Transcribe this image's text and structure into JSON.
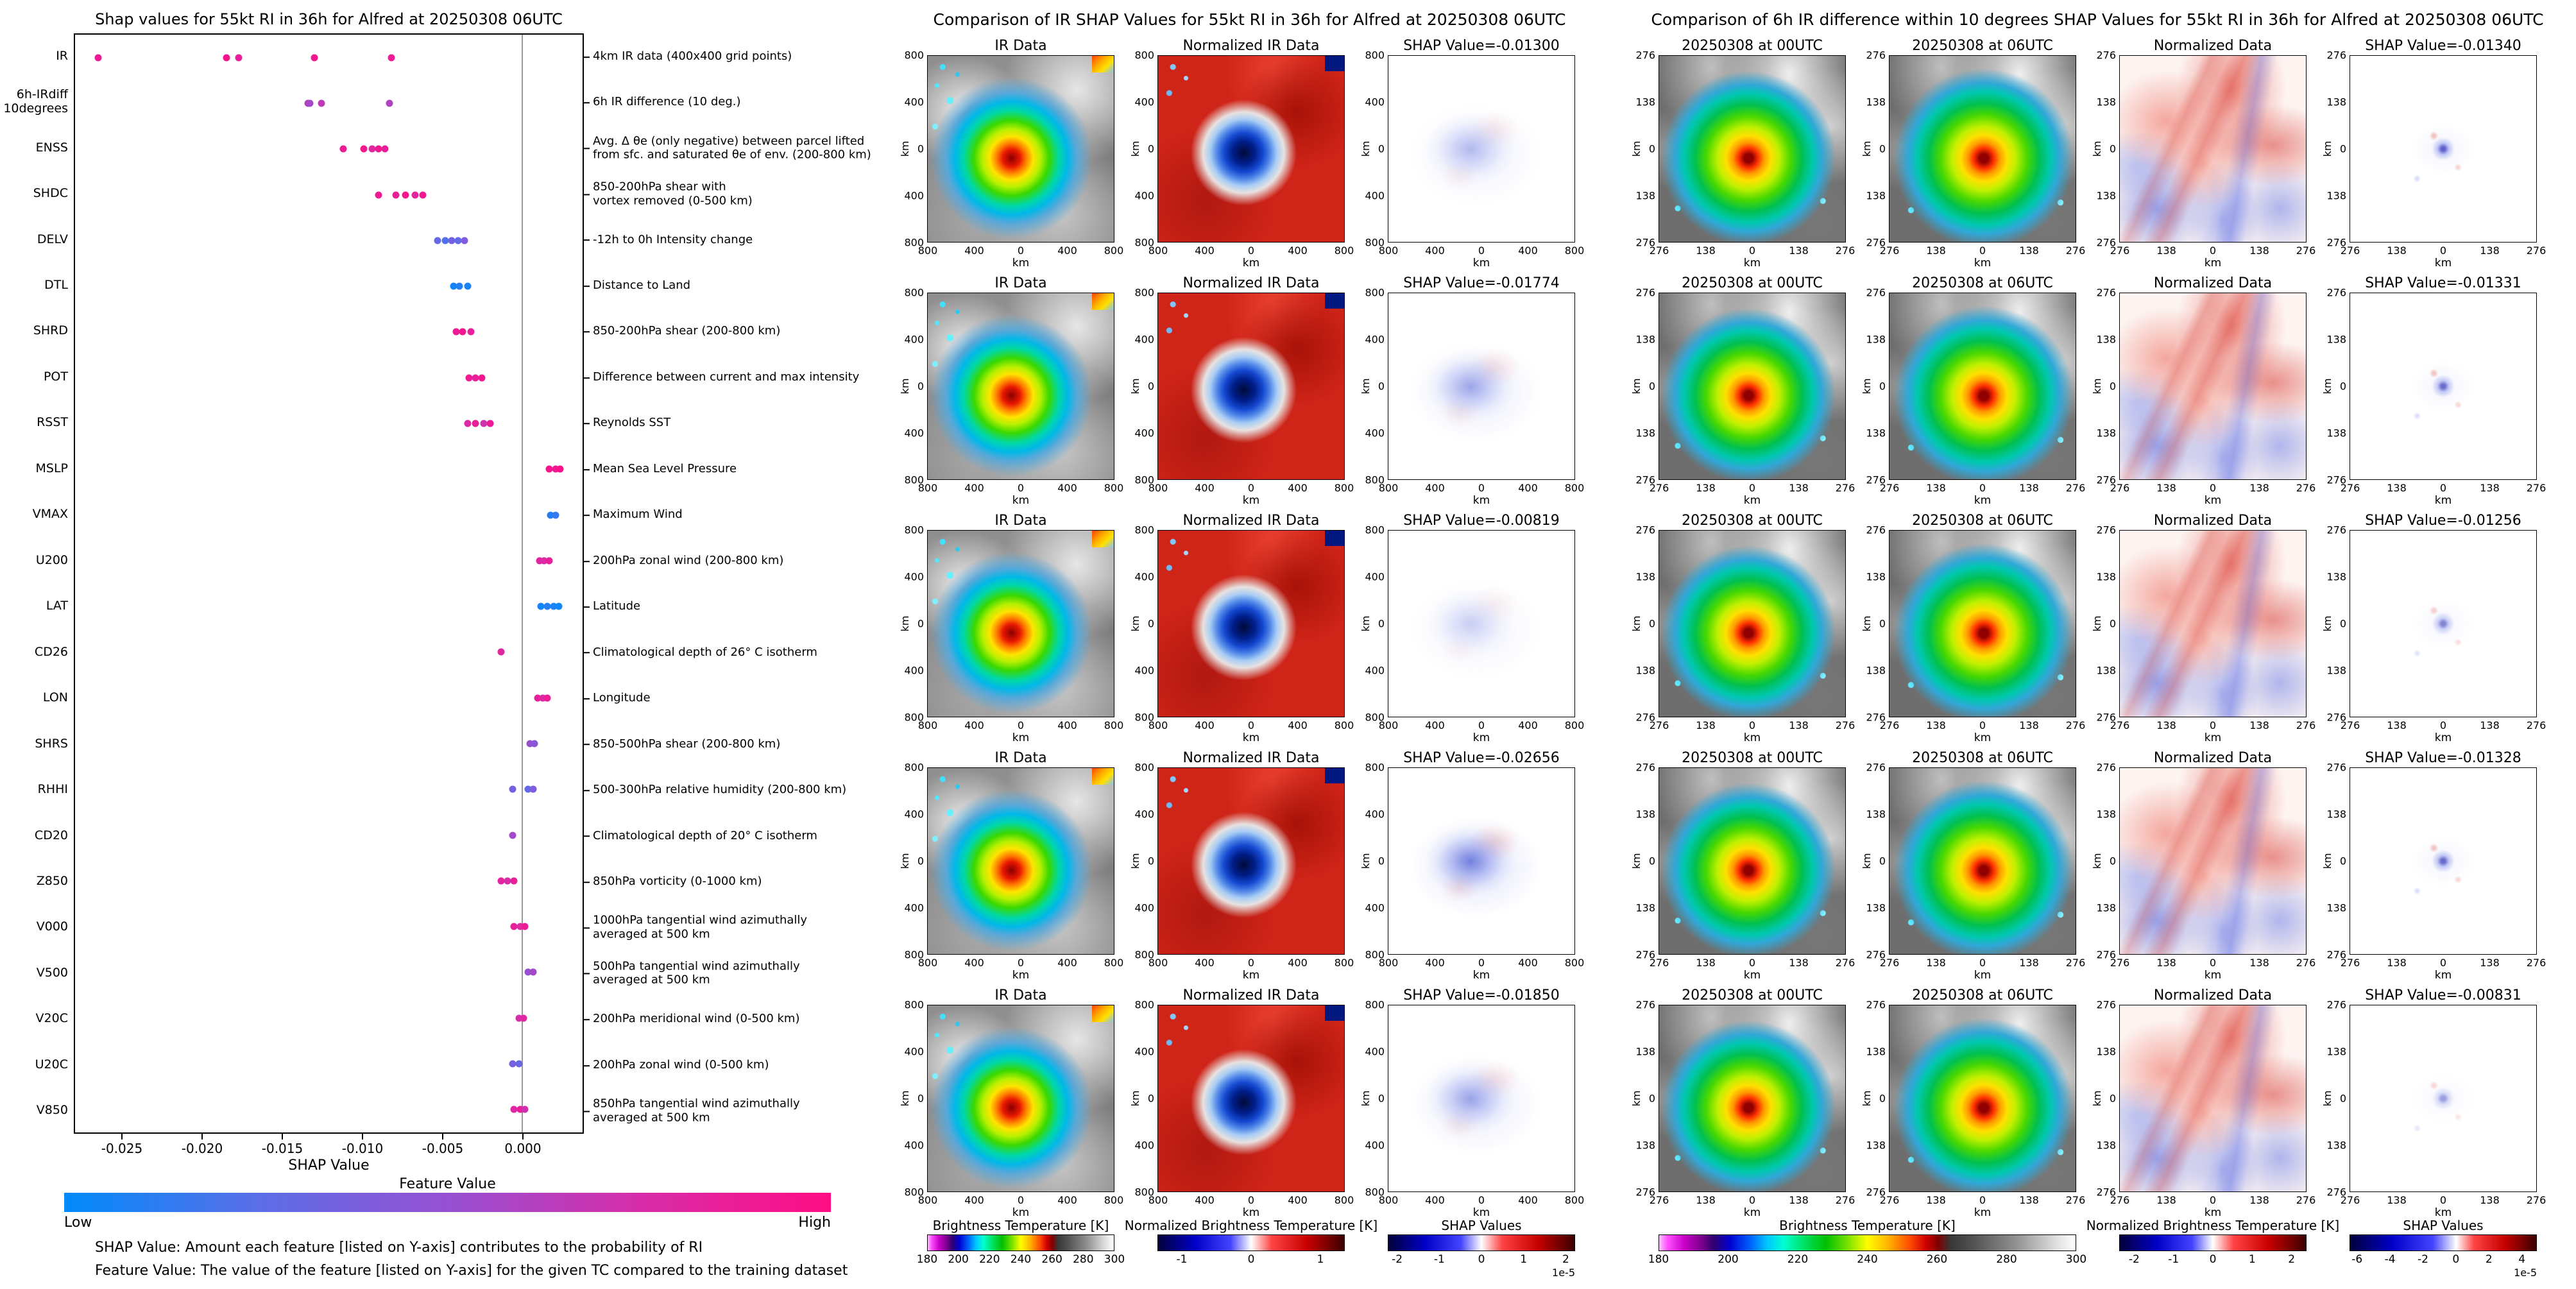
{
  "chart_data": [
    {
      "type": "scatter",
      "title": "Shap values for 55kt RI in 36h for Alfred at 20250308 06UTC",
      "xlabel": "SHAP Value",
      "xlim": [
        -0.028,
        0.0038
      ],
      "x_ticks": [
        "-0.025",
        "-0.020",
        "-0.015",
        "-0.010",
        "-0.005",
        "0.000"
      ],
      "colorbar": {
        "title": "Feature Value",
        "low": "Low",
        "high": "High",
        "low_color": "#008bfb",
        "high_color": "#ff0d83"
      },
      "footnotes": [
        "SHAP Value: Amount each feature [listed on Y-axis] contributes to the probability of RI",
        "Feature Value: The value of the feature [listed on Y-axis] for the given TC compared to the training dataset"
      ],
      "features": [
        {
          "label": "IR",
          "desc": "4km IR data (400x400 grid points)",
          "points": [
            [
              -0.02656,
              0.9
            ],
            [
              -0.0185,
              0.95
            ],
            [
              -0.01774,
              0.85
            ],
            [
              -0.013,
              0.92
            ],
            [
              -0.00819,
              0.88
            ]
          ]
        },
        {
          "label": "6h-IRdiff\n10degrees",
          "desc": "6h IR difference (10 deg.)",
          "points": [
            [
              -0.0134,
              0.6
            ],
            [
              -0.01331,
              0.72
            ],
            [
              -0.01328,
              0.55
            ],
            [
              -0.01256,
              0.66
            ],
            [
              -0.00831,
              0.6
            ]
          ]
        },
        {
          "label": "ENSS",
          "desc": "Avg. Δ θe (only negative) between parcel lifted\nfrom sfc. and saturated θe of env. (200-800 km)",
          "points": [
            [
              -0.0112,
              0.88
            ],
            [
              -0.0099,
              0.92
            ],
            [
              -0.0094,
              0.8
            ],
            [
              -0.009,
              0.9
            ],
            [
              -0.0086,
              0.85
            ]
          ]
        },
        {
          "label": "SHDC",
          "desc": "850-200hPa shear with\nvortex removed (0-500 km)",
          "points": [
            [
              -0.009,
              0.9
            ],
            [
              -0.0079,
              0.85
            ],
            [
              -0.0073,
              0.92
            ],
            [
              -0.0067,
              0.82
            ],
            [
              -0.0062,
              0.9
            ]
          ]
        },
        {
          "label": "DELV",
          "desc": "-12h to 0h Intensity change",
          "points": [
            [
              -0.0053,
              0.3
            ],
            [
              -0.0048,
              0.22
            ],
            [
              -0.0044,
              0.35
            ],
            [
              -0.004,
              0.28
            ],
            [
              -0.0036,
              0.4
            ]
          ]
        },
        {
          "label": "DTL",
          "desc": "Distance to Land",
          "points": [
            [
              -0.0043,
              0.05
            ],
            [
              -0.0039,
              0.1
            ],
            [
              -0.0034,
              0.07
            ]
          ]
        },
        {
          "label": "SHRD",
          "desc": "850-200hPa shear (200-800 km)",
          "points": [
            [
              -0.0041,
              0.88
            ],
            [
              -0.0037,
              0.93
            ],
            [
              -0.0032,
              0.85
            ]
          ]
        },
        {
          "label": "POT",
          "desc": "Difference between current and max intensity",
          "points": [
            [
              -0.0033,
              0.9
            ],
            [
              -0.0029,
              0.85
            ],
            [
              -0.0025,
              0.92
            ]
          ]
        },
        {
          "label": "RSST",
          "desc": "Reynolds SST",
          "points": [
            [
              -0.0034,
              0.78
            ],
            [
              -0.0029,
              0.85
            ],
            [
              -0.0024,
              0.72
            ],
            [
              -0.002,
              0.88
            ]
          ]
        },
        {
          "label": "MSLP",
          "desc": "Mean Sea Level Pressure",
          "points": [
            [
              0.0017,
              0.95
            ],
            [
              0.0021,
              0.9
            ],
            [
              0.0024,
              0.97
            ]
          ]
        },
        {
          "label": "VMAX",
          "desc": "Maximum Wind",
          "points": [
            [
              0.0018,
              0.1
            ],
            [
              0.0021,
              0.15
            ]
          ]
        },
        {
          "label": "U200",
          "desc": "200hPa zonal wind (200-800 km)",
          "points": [
            [
              0.0011,
              0.82
            ],
            [
              0.0014,
              0.78
            ],
            [
              0.0017,
              0.85
            ]
          ]
        },
        {
          "label": "LAT",
          "desc": "Latitude",
          "points": [
            [
              0.0012,
              0.05
            ],
            [
              0.0016,
              0.1
            ],
            [
              0.002,
              0.07
            ],
            [
              0.0023,
              0.04
            ]
          ]
        },
        {
          "label": "CD26",
          "desc": "Climatological depth of 26° C isotherm",
          "points": [
            [
              -0.0013,
              0.8
            ]
          ]
        },
        {
          "label": "LON",
          "desc": "Longitude",
          "points": [
            [
              0.001,
              0.85
            ],
            [
              0.0013,
              0.8
            ],
            [
              0.0016,
              0.88
            ]
          ]
        },
        {
          "label": "SHRS",
          "desc": "850-500hPa shear (200-800 km)",
          "points": [
            [
              0.0005,
              0.5
            ],
            [
              0.0008,
              0.45
            ]
          ]
        },
        {
          "label": "RHHI",
          "desc": "500-300hPa relative humidity (200-800 km)",
          "points": [
            [
              -0.0006,
              0.35
            ],
            [
              0.0004,
              0.28
            ],
            [
              0.0007,
              0.4
            ]
          ]
        },
        {
          "label": "CD20",
          "desc": "Climatological depth of 20° C isotherm",
          "points": [
            [
              -0.0006,
              0.55
            ]
          ]
        },
        {
          "label": "Z850",
          "desc": "850hPa vorticity (0-1000 km)",
          "points": [
            [
              -0.0013,
              0.82
            ],
            [
              -0.0009,
              0.75
            ],
            [
              -0.0005,
              0.85
            ]
          ]
        },
        {
          "label": "V000",
          "desc": "1000hPa tangential wind azimuthally\naveraged at 500 km",
          "points": [
            [
              -0.0005,
              0.85
            ],
            [
              -0.0001,
              0.78
            ],
            [
              0.0002,
              0.9
            ]
          ]
        },
        {
          "label": "V500",
          "desc": "500hPa tangential wind azimuthally\naveraged at 500 km",
          "points": [
            [
              0.0004,
              0.5
            ],
            [
              0.0007,
              0.55
            ]
          ]
        },
        {
          "label": "V20C",
          "desc": "200hPa meridional wind (0-500 km)",
          "points": [
            [
              -0.0002,
              0.75
            ],
            [
              0.0001,
              0.8
            ]
          ]
        },
        {
          "label": "U20C",
          "desc": "200hPa zonal wind (0-500 km)",
          "points": [
            [
              -0.0006,
              0.38
            ],
            [
              -0.0002,
              0.32
            ]
          ]
        },
        {
          "label": "V850",
          "desc": "850hPa tangential wind azimuthally\naveraged at 500 km",
          "points": [
            [
              -0.0005,
              0.8
            ],
            [
              -0.0001,
              0.85
            ],
            [
              0.0002,
              0.72
            ]
          ]
        }
      ]
    },
    {
      "type": "heatmap",
      "title": "Comparison of IR SHAP Values for 55kt RI in 36h for Alfred at 20250308 06UTC",
      "shap_values": [
        -0.013,
        -0.01774,
        -0.00819,
        -0.02656,
        -0.0185
      ],
      "axis_unit": "km",
      "axis_ticks": [
        "800",
        "400",
        "0",
        "400",
        "800"
      ],
      "rows": [
        [
          "IR Data",
          "Normalized IR Data",
          "SHAP Value=-0.01300"
        ],
        [
          "IR Data",
          "Normalized IR Data",
          "SHAP Value=-0.01774"
        ],
        [
          "IR Data",
          "Normalized IR Data",
          "SHAP Value=-0.00819"
        ],
        [
          "IR Data",
          "Normalized IR Data",
          "SHAP Value=-0.02656"
        ],
        [
          "IR Data",
          "Normalized IR Data",
          "SHAP Value=-0.01850"
        ]
      ],
      "colorbars": [
        {
          "label": "Brightness Temperature [K]",
          "style": "irtemp",
          "ticks": [
            "180",
            "200",
            "220",
            "240",
            "260",
            "280",
            "300"
          ]
        },
        {
          "label": "Normalized Brightness Temperature [K]",
          "style": "seismic",
          "ticks": [
            "-1",
            "0",
            "1"
          ],
          "tick_span": [
            0.13,
            0.87
          ]
        },
        {
          "label": "SHAP Values",
          "style": "seismic",
          "ticks": [
            "-2",
            "-1",
            "0",
            "1",
            "2"
          ],
          "tick_span": [
            0.05,
            0.95
          ],
          "exponent": "1e-5"
        }
      ]
    },
    {
      "type": "heatmap",
      "title": "Comparison of 6h IR difference within 10 degrees SHAP Values for 55kt RI in 36h for Alfred at 20250308 06UTC",
      "shap_values": [
        -0.0134,
        -0.01331,
        -0.01256,
        -0.01328,
        -0.00831
      ],
      "axis_unit": "km",
      "axis_ticks": [
        "276",
        "138",
        "0",
        "138",
        "276"
      ],
      "rows": [
        [
          "20250308 at 00UTC",
          "20250308 at 06UTC",
          "Normalized Data",
          "SHAP Value=-0.01340"
        ],
        [
          "20250308 at 00UTC",
          "20250308 at 06UTC",
          "Normalized Data",
          "SHAP Value=-0.01331"
        ],
        [
          "20250308 at 00UTC",
          "20250308 at 06UTC",
          "Normalized Data",
          "SHAP Value=-0.01256"
        ],
        [
          "20250308 at 00UTC",
          "20250308 at 06UTC",
          "Normalized Data",
          "SHAP Value=-0.01328"
        ],
        [
          "20250308 at 00UTC",
          "20250308 at 06UTC",
          "Normalized Data",
          "SHAP Value=-0.00831"
        ]
      ],
      "colorbars": [
        {
          "label": "Brightness Temperature [K]",
          "style": "irtemp",
          "ticks": [
            "180",
            "200",
            "220",
            "240",
            "260",
            "280",
            "300"
          ]
        },
        {
          "label": "Normalized Brightness Temperature [K]",
          "style": "seismic",
          "ticks": [
            "-2",
            "-1",
            "0",
            "1",
            "2"
          ],
          "tick_span": [
            0.08,
            0.92
          ]
        },
        {
          "label": "SHAP Values",
          "style": "seismic",
          "ticks": [
            "-6",
            "-4",
            "-2",
            "0",
            "2",
            "4"
          ],
          "tick_span": [
            0.04,
            0.92
          ],
          "zero_pos": 57,
          "exponent": "1e-5"
        }
      ]
    }
  ]
}
